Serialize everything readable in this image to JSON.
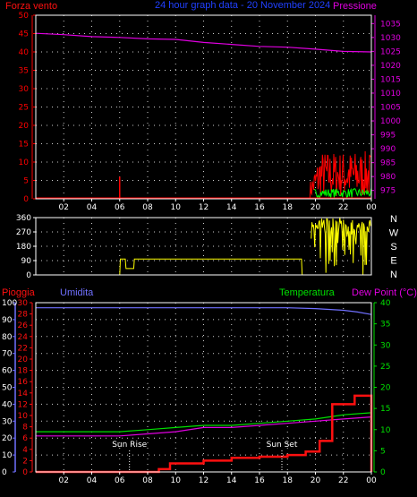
{
  "colors": {
    "background": "#000000",
    "axis": "#ffffff",
    "grid": "#ffffff",
    "wind": "#ff0000",
    "wind_gust": "#00ff00",
    "pressure": "#e000e0",
    "direction": "#ffff00",
    "rain": "#ff1010",
    "humidity": "#7070ff",
    "temperature": "#00e000",
    "dewpoint": "#e000e0",
    "title": "#2040ff",
    "sun": "#ffffff"
  },
  "header": {
    "left": "Forza vento",
    "title": "24 hour graph data - 20 November 2024",
    "right": "Pressione"
  },
  "chart_data": [
    {
      "type": "line",
      "name": "wind-pressure",
      "x_ticks": [
        "02",
        "04",
        "06",
        "08",
        "10",
        "12",
        "14",
        "16",
        "18",
        "20",
        "22",
        "00"
      ],
      "left_axis": {
        "label": "Forza vento",
        "range": [
          0,
          50
        ],
        "ticks": [
          "0",
          "5",
          "10",
          "15",
          "20",
          "25",
          "30",
          "35",
          "40",
          "45",
          "50"
        ]
      },
      "right_axis": {
        "label": "Pressione",
        "range": [
          972,
          1038
        ],
        "ticks": [
          "975",
          "980",
          "985",
          "990",
          "995",
          "1000",
          "1005",
          "1010",
          "1015",
          "1020",
          "1025",
          "1030",
          "1035"
        ]
      },
      "series": [
        {
          "name": "Pressione",
          "x": [
            0,
            2,
            4,
            6,
            8,
            10,
            12,
            14,
            16,
            18,
            20,
            22,
            24
          ],
          "y": [
            1031.5,
            1031,
            1030.3,
            1030,
            1029.5,
            1029.3,
            1028.2,
            1027.5,
            1026.8,
            1026.5,
            1025.8,
            1025,
            1024.8
          ]
        }
      ],
      "wind_spike": {
        "hour": 6.0,
        "value": 6
      },
      "burst_start_hour": 19.6
    },
    {
      "type": "line",
      "name": "wind-direction",
      "range": [
        0,
        360
      ],
      "ticks": [
        "0",
        "90",
        "180",
        "270",
        "360"
      ],
      "compass": [
        "N",
        "W",
        "S",
        "E",
        "N"
      ],
      "x": [
        0,
        6.0,
        6.05,
        6.4,
        6.45,
        7.0,
        7.05,
        7.25,
        7.3,
        19.0,
        19.05
      ],
      "y": [
        0,
        0,
        100,
        100,
        40,
        40,
        100,
        100,
        100,
        100,
        0
      ],
      "burst_start_hour": 19.7
    },
    {
      "type": "line",
      "name": "rain-humidity-temperature",
      "rain_axis": {
        "label": "Pioggia",
        "range": [
          0,
          30
        ],
        "ticks": [
          "0",
          "2",
          "4",
          "6",
          "8",
          "10",
          "12",
          "14",
          "16",
          "18",
          "20",
          "22",
          "24",
          "26",
          "28",
          "30"
        ]
      },
      "humidity_axis": {
        "label": "Umidita",
        "range": [
          0,
          100
        ],
        "ticks": [
          "0",
          "10",
          "20",
          "30",
          "40",
          "50",
          "60",
          "70",
          "80",
          "90",
          "100"
        ]
      },
      "temp_axis": {
        "label": "Temperatura",
        "range": [
          0,
          40
        ],
        "ticks": [
          "0",
          "5",
          "10",
          "15",
          "20",
          "25",
          "30",
          "35",
          "40"
        ]
      },
      "dewpoint_label": "Dew Point (°C)",
      "series": [
        {
          "name": "Umidita",
          "x": [
            0,
            6,
            12,
            18,
            20,
            22,
            23,
            24
          ],
          "y": [
            97,
            97,
            97,
            97,
            96.5,
            95.5,
            94.5,
            93
          ]
        },
        {
          "name": "Temperatura",
          "x": [
            0,
            4,
            6,
            8,
            10,
            12,
            14,
            16,
            18,
            20,
            22,
            24
          ],
          "y": [
            9.5,
            9.5,
            9.5,
            10,
            10.5,
            11,
            11,
            11.5,
            12,
            12.5,
            13.5,
            14
          ]
        },
        {
          "name": "Dew Point",
          "x": [
            0,
            4,
            6,
            8,
            10,
            12,
            14,
            16,
            18,
            20,
            22,
            24
          ],
          "y": [
            8.5,
            8.5,
            8.5,
            9,
            9.5,
            10.5,
            10.5,
            11,
            11.5,
            12,
            12.5,
            13
          ]
        },
        {
          "name": "Pioggia",
          "x": [
            0,
            8.0,
            8.8,
            9.6,
            10.4,
            12.0,
            14.0,
            16.0,
            18.0,
            19.3,
            20.3,
            21.2,
            22.8,
            23.9
          ],
          "y": [
            0,
            0,
            0.5,
            1.5,
            1.5,
            2.0,
            2.5,
            2.7,
            3.0,
            3.6,
            5.5,
            12.0,
            13.5,
            13.5
          ]
        }
      ],
      "annotations": [
        {
          "text": "Sun Rise",
          "hour": 6.7
        },
        {
          "text": "Sun Set",
          "hour": 17.6
        }
      ]
    }
  ]
}
